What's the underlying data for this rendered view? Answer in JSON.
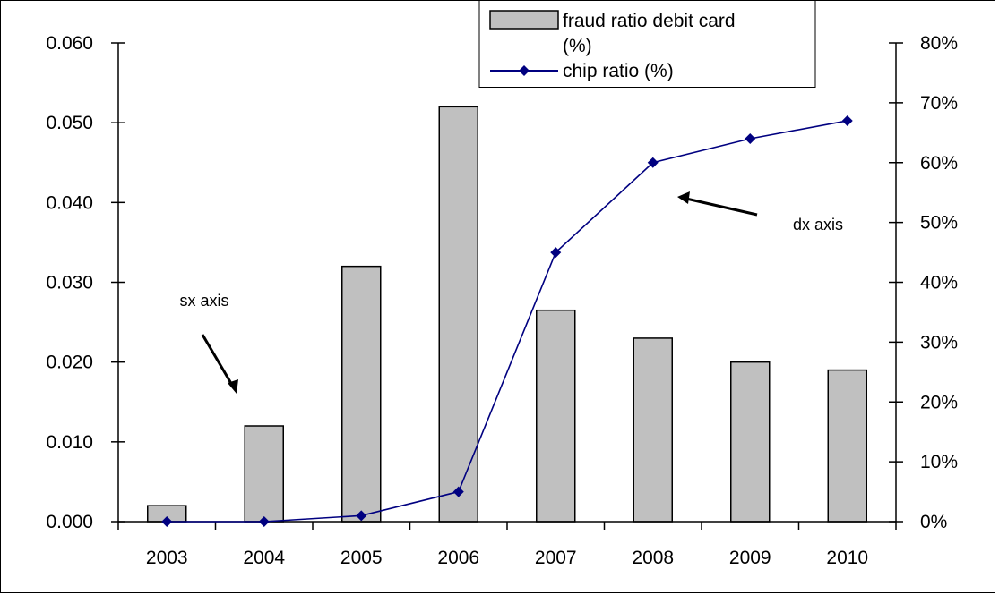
{
  "chart_data": {
    "type": "bar",
    "categories": [
      "2003",
      "2004",
      "2005",
      "2006",
      "2007",
      "2008",
      "2009",
      "2010"
    ],
    "series": [
      {
        "name": "fraud ratio debit card (%)",
        "kind": "bar",
        "axis": "left",
        "values": [
          0.002,
          0.012,
          0.032,
          0.052,
          0.0265,
          0.023,
          0.02,
          0.019
        ]
      },
      {
        "name": "chip ratio (%)",
        "kind": "line",
        "axis": "right",
        "values": [
          0,
          0,
          0.01,
          0.05,
          0.45,
          0.6,
          0.64,
          0.67
        ]
      }
    ],
    "y_left": {
      "ylim": [
        0,
        0.06
      ],
      "ticks": [
        0,
        0.01,
        0.02,
        0.03,
        0.04,
        0.05,
        0.06
      ],
      "tick_labels": [
        "0.000",
        "0.010",
        "0.020",
        "0.030",
        "0.040",
        "0.050",
        "0.060"
      ]
    },
    "y_right": {
      "ylim": [
        0,
        0.8
      ],
      "ticks": [
        0,
        0.1,
        0.2,
        0.3,
        0.4,
        0.5,
        0.6,
        0.7,
        0.8
      ],
      "tick_labels": [
        "0%",
        "10%",
        "20%",
        "30%",
        "40%",
        "50%",
        "60%",
        "70%",
        "80%"
      ]
    },
    "annotations": [
      "sx axis",
      "dx axis"
    ],
    "legend": {
      "placement": "top-center",
      "bar_label_line1": "fraud ratio debit card",
      "bar_label_line2": "(%)",
      "line_label": "chip ratio (%)"
    },
    "grid": false,
    "colors": {
      "bar_fill": "#c0c0c0",
      "line": "#000080",
      "marker": "#000080"
    }
  }
}
